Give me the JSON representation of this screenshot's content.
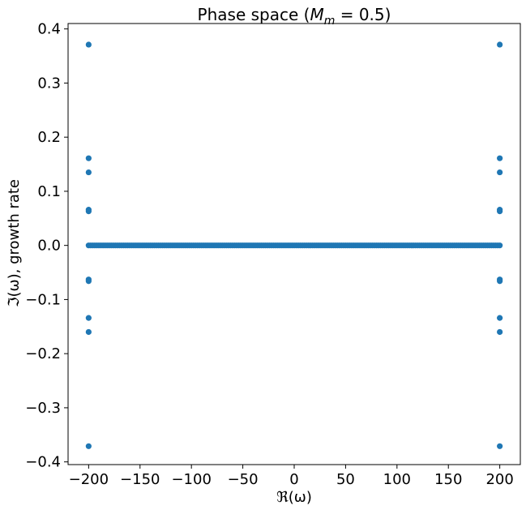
{
  "chart_data": {
    "type": "scatter",
    "title_text": "Phase space (",
    "title_math_base": "M",
    "title_math_sub": "m",
    "title_math_rest": " = 0.5)",
    "xlabel": "ℜ(ω)",
    "ylabel": "ℑ(ω), growth rate",
    "xlim": [
      -220,
      220
    ],
    "ylim": [
      -0.405,
      0.41
    ],
    "x_ticks": [
      -200,
      -150,
      -100,
      -50,
      0,
      50,
      100,
      150,
      200
    ],
    "x_tick_labels": [
      "−200",
      "−150",
      "−100",
      "−50",
      "0",
      "50",
      "100",
      "150",
      "200"
    ],
    "y_ticks": [
      -0.4,
      -0.3,
      -0.2,
      -0.1,
      0.0,
      0.1,
      0.2,
      0.3,
      0.4
    ],
    "y_tick_labels": [
      "−0.4",
      "−0.3",
      "−0.2",
      "−0.1",
      "0.0",
      "0.1",
      "0.2",
      "0.3",
      "0.4"
    ],
    "grid": false,
    "marker_color": "#1f77b4",
    "series": [
      {
        "points": [
          [
            -200,
            0.371
          ],
          [
            200,
            0.371
          ],
          [
            -200,
            0.161
          ],
          [
            200,
            0.161
          ],
          [
            -200,
            0.135
          ],
          [
            200,
            0.135
          ],
          [
            -200,
            0.066
          ],
          [
            200,
            0.066
          ],
          [
            -200,
            0.063
          ],
          [
            200,
            0.063
          ],
          [
            -200,
            -0.063
          ],
          [
            200,
            -0.063
          ],
          [
            -200,
            -0.066
          ],
          [
            200,
            -0.066
          ],
          [
            -200,
            -0.134
          ],
          [
            200,
            -0.134
          ],
          [
            -200,
            -0.16
          ],
          [
            200,
            -0.16
          ],
          [
            -200,
            -0.371
          ],
          [
            200,
            -0.371
          ]
        ],
        "zero_line_points": {
          "x_start": -200,
          "x_end": 200,
          "step": 2,
          "y": 0.0
        }
      }
    ]
  }
}
